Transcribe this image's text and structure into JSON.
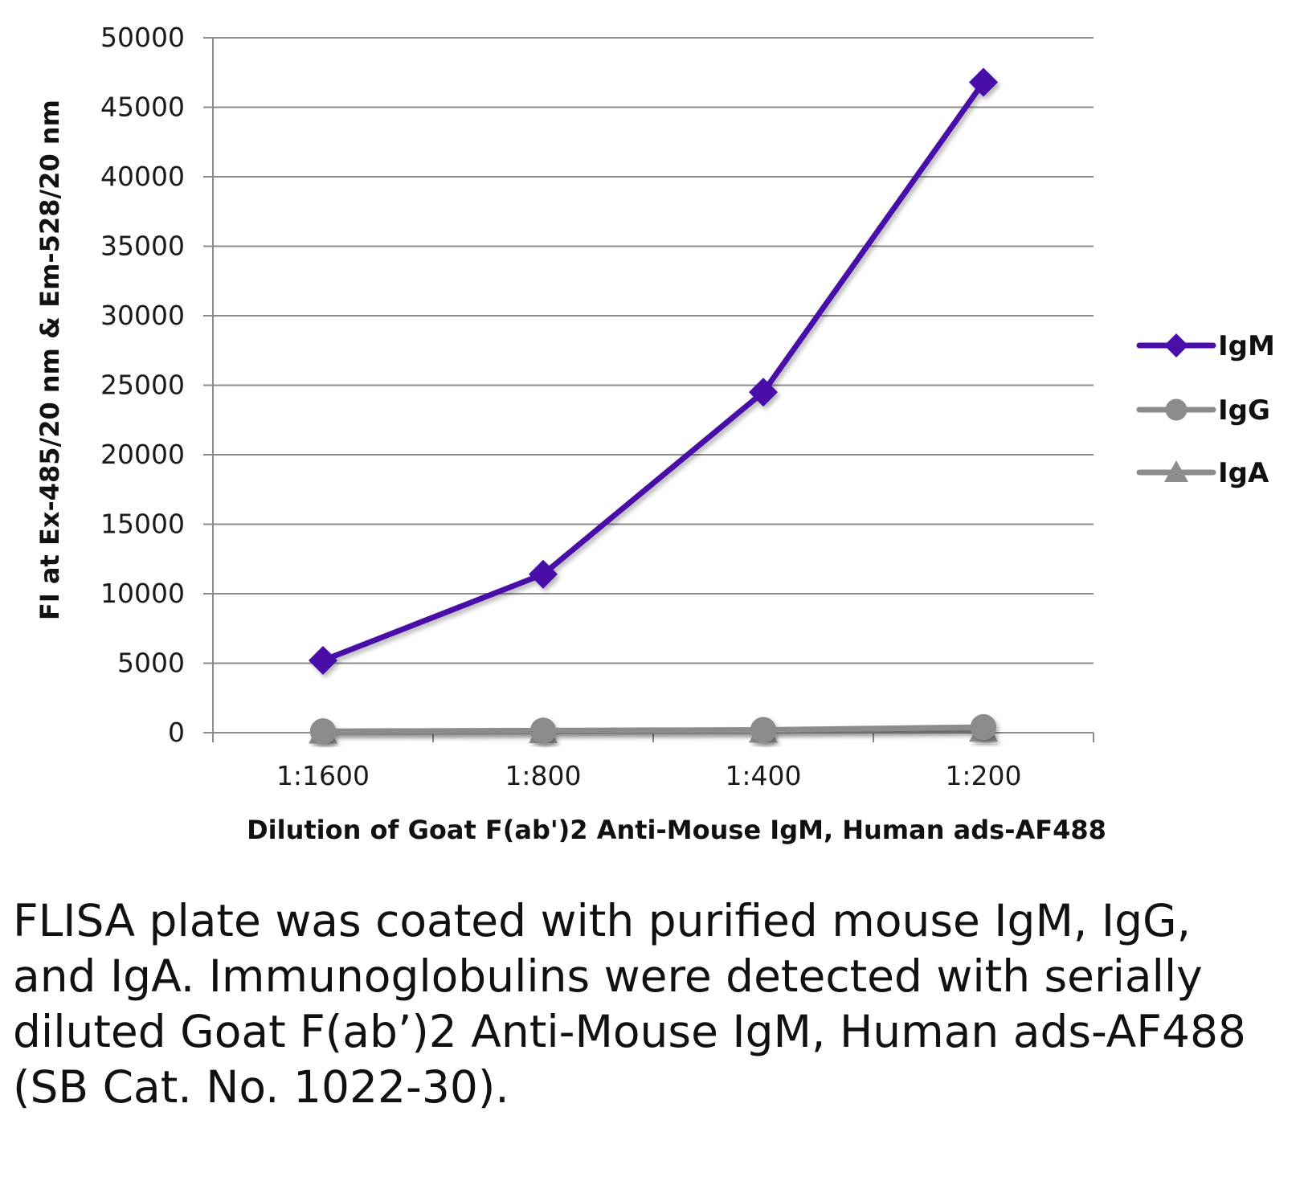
{
  "chart_data": {
    "type": "line",
    "title": "",
    "xlabel": "Dilution of Goat F(ab')2 Anti-Mouse IgM, Human ads-AF488",
    "ylabel": "FI at Ex-485/20 nm & Em-528/20 nm",
    "categories": [
      "1:1600",
      "1:800",
      "1:400",
      "1:200"
    ],
    "ylim": [
      0,
      50000
    ],
    "yticks": [
      0,
      5000,
      10000,
      15000,
      20000,
      25000,
      30000,
      35000,
      40000,
      45000,
      50000
    ],
    "grid": true,
    "legend_position": "right",
    "series": [
      {
        "name": "IgM",
        "values": [
          5200,
          11400,
          24500,
          46800
        ],
        "color": "#4a0fa8",
        "marker": "diamond"
      },
      {
        "name": "IgG",
        "values": [
          100,
          150,
          200,
          400
        ],
        "color": "#8c8c8c",
        "marker": "circle"
      },
      {
        "name": "IgA",
        "values": [
          50,
          80,
          120,
          200
        ],
        "color": "#8c8c8c",
        "marker": "triangle"
      }
    ]
  },
  "caption": "FLISA plate was coated with purified mouse IgM, IgG, and IgA.  Immunoglobulins were detected with serially diluted Goat F(ab’)2 Anti-Mouse IgM, Human ads-AF488 (SB Cat. No. 1022-30)."
}
